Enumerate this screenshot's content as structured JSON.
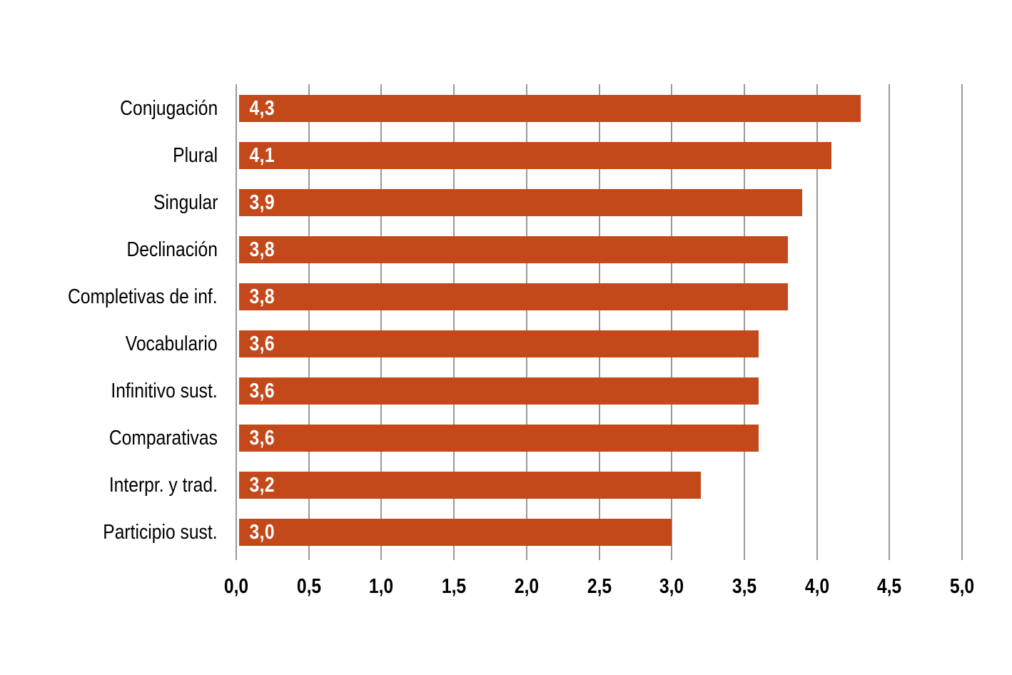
{
  "chart_data": {
    "type": "bar",
    "orientation": "horizontal",
    "title": "",
    "xlabel": "",
    "ylabel": "",
    "categories": [
      "Conjugación",
      "Plural",
      "Singular",
      "Declinación",
      "Completivas de inf.",
      "Vocabulario",
      "Infinitivo sust.",
      "Comparativas",
      "Interpr. y trad.",
      "Participio sust."
    ],
    "values": [
      4.3,
      4.1,
      3.9,
      3.8,
      3.8,
      3.6,
      3.6,
      3.6,
      3.2,
      3.0
    ],
    "value_labels": [
      "4,3",
      "4,1",
      "3,9",
      "3,8",
      "3,8",
      "3,6",
      "3,6",
      "3,6",
      "3,2",
      "3,0"
    ],
    "xlim": [
      0,
      5
    ],
    "x_ticks": [
      0,
      0.5,
      1,
      1.5,
      2,
      2.5,
      3,
      3.5,
      4,
      4.5,
      5
    ],
    "x_tick_labels": [
      "0,0",
      "0,5",
      "1,0",
      "1,5",
      "2,0",
      "2,5",
      "3,0",
      "3,5",
      "4,0",
      "4,5",
      "5,0"
    ],
    "grid": "vertical",
    "legend": "none",
    "colors": {
      "bar": "#c3491b",
      "gridline": "#999999",
      "category_text": "#000000",
      "tick_text": "#000000",
      "value_text": "#ffffff",
      "background": "#ffffff"
    }
  }
}
